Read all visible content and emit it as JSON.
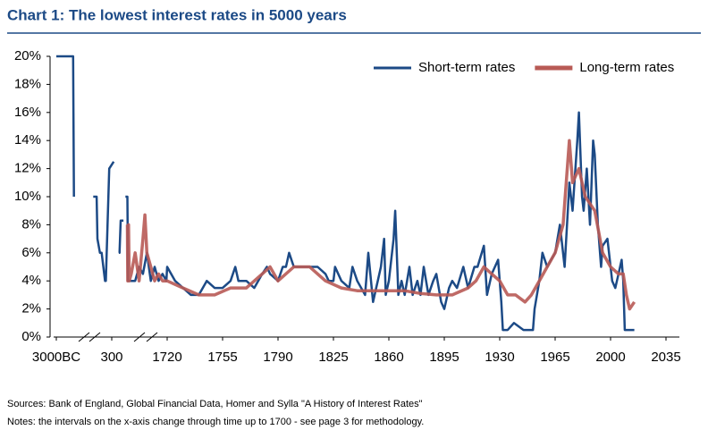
{
  "chart_data": {
    "type": "line",
    "title": "Chart 1: The lowest interest rates in 5000 years",
    "notes": [
      "Sources: Bank of England, Global Financial Data, Homer and Sylla \"A History of Interest Rates\"",
      "Notes: the intervals on the x-axis change through time up to 1700 - see page 3 for methodology."
    ],
    "xticks": [
      {
        "value": -3000,
        "label": "3000BC"
      },
      300,
      1720,
      1755,
      1790,
      1825,
      1860,
      1895,
      1930,
      1965,
      2000,
      2035
    ],
    "xlim": [
      -3000,
      2035
    ],
    "ylim": [
      0,
      20
    ],
    "yticks": [
      {
        "value": 0,
        "label": "0%"
      },
      {
        "value": 2,
        "label": "2%"
      },
      {
        "value": 4,
        "label": "4%"
      },
      {
        "value": 6,
        "label": "6%"
      },
      {
        "value": 8,
        "label": "8%"
      },
      {
        "value": 10,
        "label": "10%"
      },
      {
        "value": 12,
        "label": "12%"
      },
      {
        "value": 14,
        "label": "14%"
      },
      {
        "value": 16,
        "label": "16%"
      },
      {
        "value": 18,
        "label": "18%"
      },
      {
        "value": 20,
        "label": "20%"
      }
    ],
    "legend": "upper right",
    "series": [
      {
        "name": "Short-term rates",
        "color": "#1c4a86",
        "x": [
          -3000,
          -2000,
          -1950,
          -1900,
          -800,
          -600,
          -550,
          -400,
          -300,
          -100,
          -50,
          150,
          350,
          400,
          480,
          500,
          530,
          600,
          620,
          650,
          700,
          720,
          800,
          900,
          1000,
          1100,
          1200,
          1300,
          1400,
          1500,
          1600,
          1700,
          1720,
          1725,
          1730,
          1735,
          1740,
          1745,
          1750,
          1755,
          1760,
          1763,
          1765,
          1770,
          1775,
          1780,
          1783,
          1785,
          1790,
          1793,
          1795,
          1797,
          1800,
          1805,
          1810,
          1815,
          1820,
          1822,
          1825,
          1826,
          1830,
          1835,
          1837,
          1840,
          1845,
          1847,
          1850,
          1853,
          1855,
          1857,
          1858,
          1860,
          1863,
          1864,
          1866,
          1868,
          1870,
          1873,
          1875,
          1878,
          1880,
          1882,
          1885,
          1888,
          1890,
          1893,
          1895,
          1898,
          1900,
          1903,
          1907,
          1910,
          1914,
          1916,
          1920,
          1922,
          1925,
          1929,
          1931,
          1932,
          1935,
          1939,
          1945,
          1951,
          1952,
          1955,
          1957,
          1960,
          1965,
          1968,
          1969,
          1971,
          1973,
          1974,
          1976,
          1979,
          1980,
          1982,
          1983,
          1985,
          1987,
          1989,
          1990,
          1992,
          1994,
          1995,
          1998,
          2001,
          2003,
          2005,
          2007,
          2008,
          2009,
          2012,
          2015
        ],
        "values": [
          20,
          20,
          10,
          null,
          10,
          10,
          7,
          6,
          6,
          4,
          4,
          12,
          12.5,
          null,
          6,
          6,
          8.3,
          8.3,
          null,
          10,
          10,
          4,
          4,
          4,
          5,
          4.5,
          6,
          4,
          5,
          4,
          4.5,
          4,
          5,
          4,
          3.5,
          3,
          3,
          4,
          3.5,
          3.5,
          4,
          5,
          4,
          4,
          3.5,
          4.5,
          5,
          4.5,
          4,
          5,
          5,
          6,
          5,
          5,
          5,
          5,
          4.5,
          4,
          4,
          5,
          4,
          3.5,
          5,
          4,
          3,
          6,
          2.5,
          4,
          5,
          7,
          3,
          4,
          7,
          9,
          3,
          4,
          3,
          5,
          3,
          4,
          3,
          5,
          3,
          4,
          4.5,
          2.5,
          2,
          3.5,
          4,
          3.5,
          5,
          3.5,
          5,
          5,
          6.5,
          3,
          4.5,
          5.5,
          2.5,
          0.5,
          0.5,
          1,
          0.5,
          0.5,
          2,
          4,
          6,
          5,
          6,
          8,
          7,
          5,
          9,
          11,
          9,
          14,
          16,
          10,
          9,
          12,
          8,
          14,
          13,
          8,
          5,
          6.5,
          7,
          4,
          3.5,
          4.5,
          5.5,
          4,
          0.5,
          0.5,
          0.5
        ]
      },
      {
        "name": "Long-term rates",
        "color": "#b85a55",
        "x": [
          700,
          710,
          730,
          750,
          800,
          900,
          1000,
          1100,
          1150,
          1200,
          1300,
          1400,
          1500,
          1600,
          1700,
          1720,
          1730,
          1740,
          1750,
          1760,
          1770,
          1780,
          1785,
          1790,
          1800,
          1810,
          1815,
          1820,
          1830,
          1840,
          1850,
          1860,
          1870,
          1880,
          1890,
          1900,
          1910,
          1915,
          1920,
          1925,
          1930,
          1935,
          1940,
          1946,
          1950,
          1955,
          1960,
          1965,
          1970,
          1974,
          1976,
          1980,
          1984,
          1990,
          1995,
          2000,
          2005,
          2008,
          2010,
          2012,
          2015
        ],
        "values": [
          8,
          4,
          8,
          4,
          4.5,
          6,
          4,
          7,
          8.7,
          6,
          5,
          4,
          4.5,
          4,
          4,
          4,
          3.5,
          3,
          3,
          3.5,
          3.5,
          4.5,
          5,
          4,
          5,
          5,
          4.5,
          4,
          3.5,
          3.3,
          3.3,
          3.3,
          3.3,
          3.1,
          3,
          3,
          3.5,
          4,
          5,
          4.5,
          4,
          3,
          3,
          2.5,
          3,
          4,
          5,
          6,
          8,
          14,
          11,
          12,
          10,
          9,
          6,
          5,
          4.5,
          4.5,
          3,
          2,
          2.5
        ]
      }
    ]
  }
}
